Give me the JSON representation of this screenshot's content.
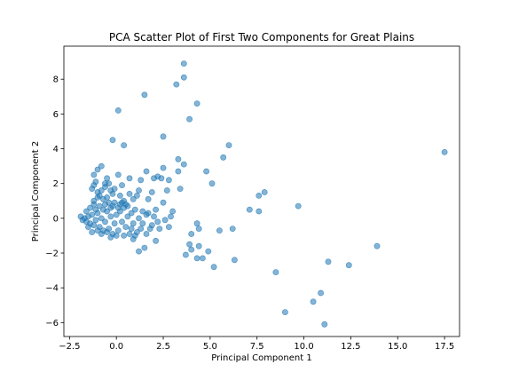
{
  "chart_data": {
    "type": "scatter",
    "title": "PCA Scatter Plot of First Two Components for Great Plains",
    "xlabel": "Principal Component 1",
    "ylabel": "Principal Component 2",
    "xlim": [
      -2.8,
      18.3
    ],
    "ylim": [
      -6.8,
      9.9
    ],
    "xticks": [
      -2.5,
      0.0,
      2.5,
      5.0,
      7.5,
      10.0,
      12.5,
      15.0,
      17.5
    ],
    "xtick_labels": [
      "−2.5",
      "0.0",
      "2.5",
      "5.0",
      "7.5",
      "10.0",
      "12.5",
      "15.0",
      "17.5"
    ],
    "yticks": [
      -6,
      -4,
      -2,
      0,
      2,
      4,
      6,
      8
    ],
    "ytick_labels": [
      "−6",
      "−4",
      "−2",
      "0",
      "2",
      "4",
      "6",
      "8"
    ],
    "grid": false,
    "point_color": "#1f77b4",
    "point_alpha": 0.55,
    "series": [
      {
        "points": [
          [
            3.6,
            8.9
          ],
          [
            3.6,
            8.1
          ],
          [
            3.2,
            7.7
          ],
          [
            1.5,
            7.1
          ],
          [
            4.3,
            6.6
          ],
          [
            0.1,
            6.2
          ],
          [
            3.9,
            5.7
          ],
          [
            2.5,
            4.7
          ],
          [
            -0.2,
            4.5
          ],
          [
            0.4,
            4.2
          ],
          [
            6.0,
            4.2
          ],
          [
            17.5,
            3.8
          ],
          [
            5.7,
            3.5
          ],
          [
            3.3,
            3.4
          ],
          [
            3.6,
            3.1
          ],
          [
            4.8,
            2.7
          ],
          [
            1.6,
            2.7
          ],
          [
            2.5,
            2.9
          ],
          [
            3.3,
            2.7
          ],
          [
            0.1,
            2.5
          ],
          [
            2.2,
            2.4
          ],
          [
            2.8,
            2.2
          ],
          [
            2.0,
            2.3
          ],
          [
            0.7,
            2.3
          ],
          [
            1.3,
            2.2
          ],
          [
            5.1,
            2.0
          ],
          [
            1.9,
            1.5
          ],
          [
            3.4,
            1.7
          ],
          [
            7.9,
            1.5
          ],
          [
            7.6,
            1.3
          ],
          [
            2.5,
            0.9
          ],
          [
            7.1,
            0.5
          ],
          [
            7.6,
            0.4
          ],
          [
            9.7,
            0.7
          ],
          [
            1.7,
            0.3
          ],
          [
            2.1,
            0.5
          ],
          [
            2.9,
            0.1
          ],
          [
            4.3,
            -0.3
          ],
          [
            5.5,
            -0.7
          ],
          [
            6.2,
            -0.6
          ],
          [
            4.4,
            -0.6
          ],
          [
            4.0,
            -0.9
          ],
          [
            3.9,
            -1.5
          ],
          [
            4.0,
            -1.8
          ],
          [
            4.4,
            -1.6
          ],
          [
            3.7,
            -2.1
          ],
          [
            4.3,
            -2.3
          ],
          [
            4.6,
            -2.3
          ],
          [
            4.9,
            -1.9
          ],
          [
            5.2,
            -2.8
          ],
          [
            6.3,
            -2.4
          ],
          [
            8.5,
            -3.1
          ],
          [
            10.9,
            -4.3
          ],
          [
            10.5,
            -4.8
          ],
          [
            9.0,
            -5.4
          ],
          [
            11.1,
            -6.1
          ],
          [
            11.3,
            -2.5
          ],
          [
            12.4,
            -2.7
          ],
          [
            13.9,
            -1.6
          ],
          [
            1.2,
            -1.9
          ],
          [
            1.5,
            -1.7
          ],
          [
            0.9,
            -1.2
          ],
          [
            2.1,
            -1.3
          ],
          [
            1.3,
            -0.6
          ],
          [
            1.6,
            -0.9
          ],
          [
            2.3,
            -0.6
          ],
          [
            2.8,
            -0.5
          ],
          [
            1.1,
            1.3
          ],
          [
            1.2,
            1.6
          ],
          [
            1.7,
            1.1
          ],
          [
            2.7,
            1.6
          ],
          [
            2.4,
            2.3
          ],
          [
            3.0,
            0.4
          ],
          [
            2.6,
            -0.1
          ],
          [
            1.9,
            -0.4
          ],
          [
            1.4,
            0.4
          ],
          [
            -0.1,
            1.7
          ],
          [
            -0.3,
            1.6
          ],
          [
            0.3,
            1.9
          ],
          [
            0.7,
            1.4
          ],
          [
            -0.5,
            1.2
          ],
          [
            -0.7,
            1.1
          ],
          [
            -1.2,
            2.5
          ],
          [
            -1.0,
            2.8
          ],
          [
            -0.8,
            3.0
          ],
          [
            -1.1,
            2.1
          ],
          [
            -1.2,
            1.9
          ],
          [
            -1.0,
            1.5
          ],
          [
            -1.3,
            1.7
          ],
          [
            -0.9,
            1.3
          ],
          [
            -0.5,
            2.3
          ],
          [
            -0.6,
            2.0
          ],
          [
            -0.2,
            1.4
          ],
          [
            0.9,
            1.1
          ],
          [
            -1.9,
            0.1
          ],
          [
            -1.7,
            0.0
          ],
          [
            -1.6,
            -0.2
          ],
          [
            -1.5,
            0.1
          ],
          [
            -1.4,
            -0.3
          ],
          [
            -1.3,
            0.2
          ],
          [
            -1.2,
            -0.4
          ],
          [
            -1.1,
            -0.1
          ],
          [
            -1.0,
            0.3
          ],
          [
            -0.9,
            -0.5
          ],
          [
            -0.8,
            0.0
          ],
          [
            -0.7,
            0.5
          ],
          [
            -0.6,
            -0.2
          ],
          [
            -0.5,
            0.4
          ],
          [
            -0.4,
            -0.6
          ],
          [
            -0.3,
            0.1
          ],
          [
            -0.2,
            0.7
          ],
          [
            -0.1,
            -0.3
          ],
          [
            0.0,
            0.2
          ],
          [
            0.1,
            -0.7
          ],
          [
            0.2,
            0.4
          ],
          [
            0.3,
            -0.2
          ],
          [
            0.4,
            0.6
          ],
          [
            0.5,
            -0.5
          ],
          [
            0.6,
            0.1
          ],
          [
            0.7,
            -0.9
          ],
          [
            0.8,
            0.3
          ],
          [
            0.9,
            -0.3
          ],
          [
            1.0,
            0.5
          ],
          [
            1.1,
            -0.8
          ],
          [
            -1.4,
            0.6
          ],
          [
            -1.2,
            0.8
          ],
          [
            -1.0,
            -0.7
          ],
          [
            -0.8,
            -0.9
          ],
          [
            -0.6,
            0.8
          ],
          [
            -0.4,
            0.9
          ],
          [
            -0.2,
            -0.9
          ],
          [
            0.0,
            -1.0
          ],
          [
            0.2,
            0.8
          ],
          [
            0.4,
            -1.0
          ],
          [
            0.6,
            0.7
          ],
          [
            -1.3,
            -0.8
          ],
          [
            -1.1,
            0.5
          ],
          [
            -0.9,
            0.7
          ],
          [
            -0.7,
            -0.7
          ],
          [
            -0.5,
            -0.8
          ],
          [
            -0.3,
            0.6
          ],
          [
            -0.1,
            0.9
          ],
          [
            0.1,
            0.6
          ],
          [
            0.3,
            0.9
          ],
          [
            0.5,
            0.8
          ],
          [
            -1.6,
            0.4
          ],
          [
            -1.5,
            -0.5
          ],
          [
            -1.8,
            -0.1
          ],
          [
            1.2,
            0.0
          ],
          [
            1.4,
            -0.3
          ],
          [
            1.6,
            0.2
          ],
          [
            1.8,
            -0.6
          ],
          [
            2.0,
            0.1
          ],
          [
            2.2,
            -0.2
          ],
          [
            -1.2,
            1.0
          ],
          [
            -1.0,
            1.2
          ],
          [
            -0.8,
            1.6
          ],
          [
            -0.6,
            1.8
          ],
          [
            -0.4,
            2.0
          ],
          [
            0.2,
            1.3
          ],
          [
            0.4,
            1.0
          ],
          [
            -0.3,
            -1.1
          ],
          [
            0.8,
            -0.6
          ],
          [
            1.0,
            -1.0
          ]
        ]
      }
    ]
  }
}
